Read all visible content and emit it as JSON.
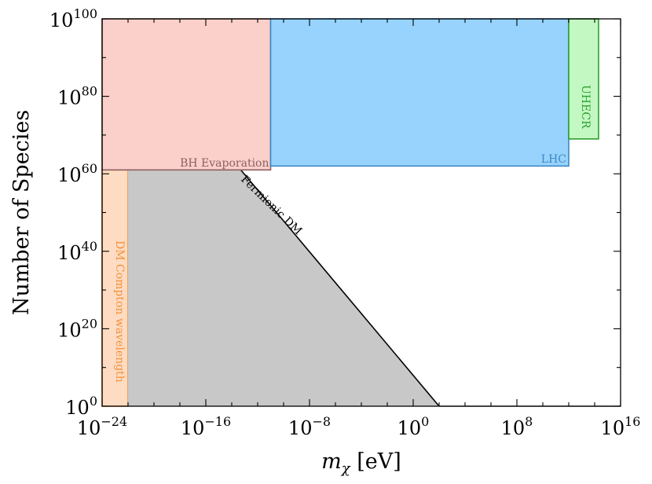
{
  "chart_data": {
    "type": "area",
    "xlabel_symbol": "m",
    "xlabel_sub": "χ",
    "xlabel_unit": " [eV]",
    "ylabel": "Number of Species",
    "x_scale": "log",
    "y_scale": "log",
    "x_log_range": [
      -24,
      16
    ],
    "y_log_range": [
      0,
      100
    ],
    "x_ticks": [
      {
        "base": "10",
        "exp": "−24",
        "log": -24
      },
      {
        "base": "10",
        "exp": "−16",
        "log": -16
      },
      {
        "base": "10",
        "exp": "−8",
        "log": -8
      },
      {
        "base": "10",
        "exp": "0",
        "log": 0
      },
      {
        "base": "10",
        "exp": "8",
        "log": 8
      },
      {
        "base": "10",
        "exp": "16",
        "log": 16
      }
    ],
    "y_ticks": [
      {
        "base": "10",
        "exp": "0",
        "log": 0
      },
      {
        "base": "10",
        "exp": "20",
        "log": 20
      },
      {
        "base": "10",
        "exp": "40",
        "log": 40
      },
      {
        "base": "10",
        "exp": "60",
        "log": 60
      },
      {
        "base": "10",
        "exp": "80",
        "log": 80
      },
      {
        "base": "10",
        "exp": "100",
        "log": 100
      }
    ],
    "regions": [
      {
        "label": "DM Compton wavelength",
        "fill": "#fddcc3",
        "stroke": "#f5903a",
        "x_log": [
          -24,
          -22
        ],
        "y_log": [
          0,
          61
        ]
      },
      {
        "label": "Fermionic DM",
        "fill": "#c8c8c8",
        "stroke": "#000000",
        "polygon_log": [
          [
            -22,
            0
          ],
          [
            -22,
            61
          ],
          [
            -13.3,
            61
          ],
          [
            2,
            0
          ]
        ]
      },
      {
        "label": "BH Evaporation",
        "fill": "#fbcfca",
        "stroke": "#8a6262",
        "x_log": [
          -24,
          -11
        ],
        "y_log": [
          61,
          100
        ]
      },
      {
        "label": "LHC",
        "fill": "#97d3fc",
        "stroke": "#3f88c4",
        "x_log": [
          -11,
          12
        ],
        "y_log": [
          62,
          100
        ]
      },
      {
        "label": "UHECR",
        "fill": "#c3f8c3",
        "stroke": "#2ca02c",
        "x_log": [
          12,
          14.3
        ],
        "y_log": [
          69,
          100
        ]
      }
    ],
    "grid": false,
    "legend": "none"
  }
}
